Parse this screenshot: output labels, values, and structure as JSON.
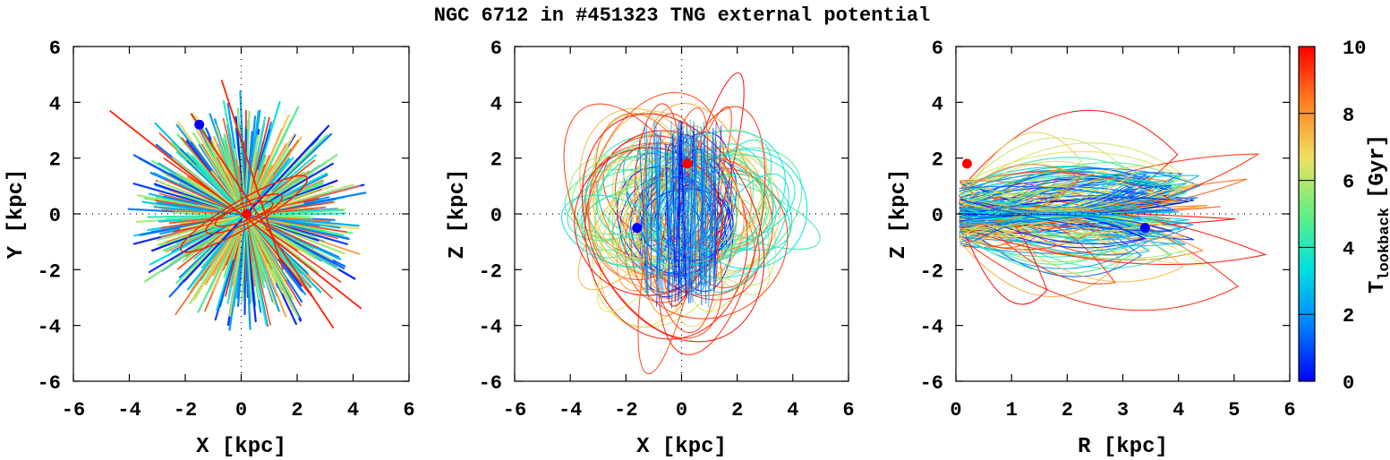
{
  "title": "NGC 6712 in #451323 TNG external potential",
  "colorbar": {
    "label_main": "T",
    "label_sub": "lookback",
    "label_unit": "[Gyr]",
    "ticks": [
      "0",
      "2",
      "4",
      "6",
      "8",
      "10"
    ],
    "range": [
      0,
      10
    ],
    "colors": [
      "#0000ff",
      "#0080ff",
      "#00e0e0",
      "#60f080",
      "#f0e060",
      "#ff8020",
      "#ff0000"
    ]
  },
  "chart_data": [
    {
      "type": "scatter",
      "panel": "XY",
      "xlabel": "X [kpc]",
      "ylabel": "Y [kpc]",
      "xlim": [
        -6,
        6
      ],
      "ylim": [
        -6,
        6
      ],
      "xticks": [
        "-6",
        "-4",
        "-2",
        "0",
        "2",
        "4",
        "6"
      ],
      "yticks": [
        "-6",
        "-4",
        "-2",
        "0",
        "2",
        "4",
        "6"
      ],
      "start_point": {
        "x": -1.5,
        "y": 3.2,
        "color": "#0000ff"
      },
      "end_point": {
        "x": 0.2,
        "y": 0.0,
        "color": "#ff0000"
      },
      "description": "radial orbit streaks colored by lookback time"
    },
    {
      "type": "scatter",
      "panel": "XZ",
      "xlabel": "X [kpc]",
      "ylabel": "Z [kpc]",
      "xlim": [
        -6,
        6
      ],
      "ylim": [
        -6,
        6
      ],
      "xticks": [
        "-6",
        "-4",
        "-2",
        "0",
        "2",
        "4",
        "6"
      ],
      "yticks": [
        "-6",
        "-4",
        "-2",
        "0",
        "2",
        "4",
        "6"
      ],
      "start_point": {
        "x": -1.6,
        "y": -0.5,
        "color": "#0000ff"
      },
      "end_point": {
        "x": 0.2,
        "y": 1.8,
        "color": "#ff0000"
      }
    },
    {
      "type": "scatter",
      "panel": "RZ",
      "xlabel": "R [kpc]",
      "ylabel": "Z [kpc]",
      "xlim": [
        0,
        6
      ],
      "ylim": [
        -6,
        6
      ],
      "xticks": [
        "0",
        "1",
        "2",
        "3",
        "4",
        "5",
        "6"
      ],
      "yticks": [
        "-6",
        "-4",
        "-2",
        "0",
        "2",
        "4",
        "6"
      ],
      "start_point": {
        "x": 3.4,
        "y": -0.5,
        "color": "#0000ff"
      },
      "end_point": {
        "x": 0.2,
        "y": 1.8,
        "color": "#ff0000"
      }
    }
  ]
}
